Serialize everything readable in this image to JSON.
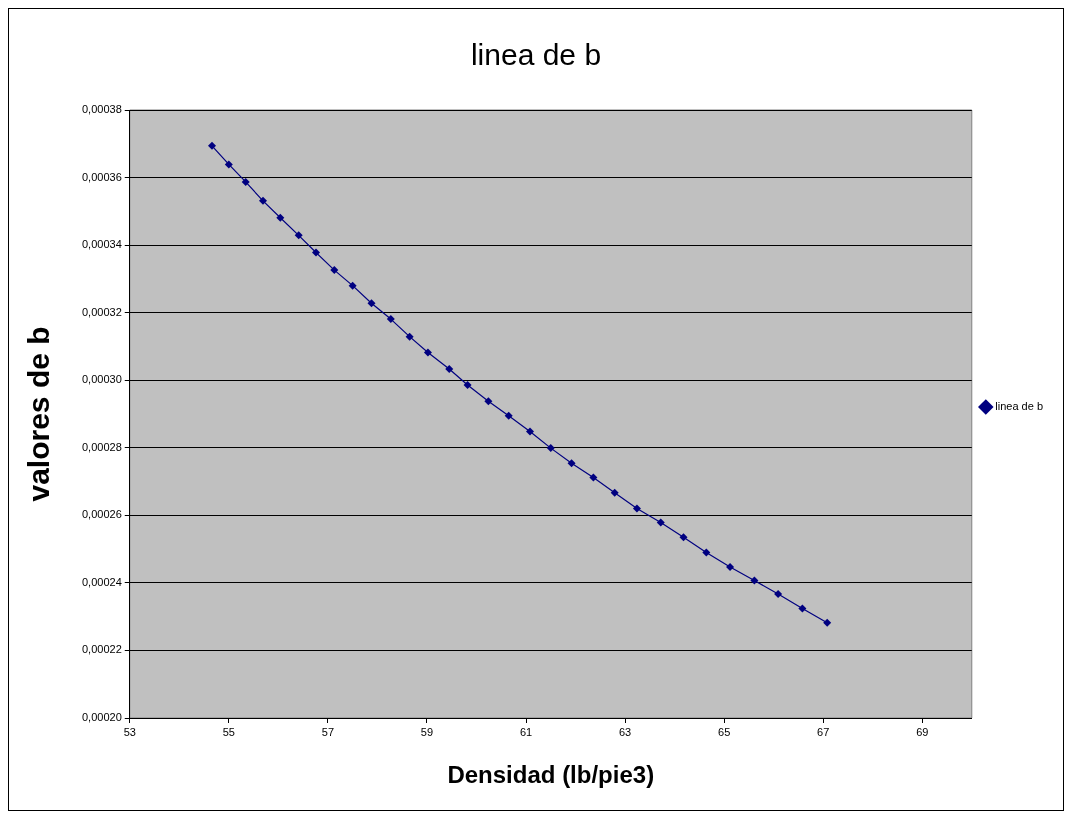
{
  "chart_data": {
    "type": "line",
    "title": "linea de b",
    "xlabel": "Densidad (lb/pie3)",
    "ylabel": "valores de b",
    "xlim": [
      53,
      70
    ],
    "xticks": [
      53,
      55,
      57,
      59,
      61,
      63,
      65,
      67,
      69
    ],
    "ylim": [
      0.0002,
      0.00038
    ],
    "yticks": [
      {
        "value": 0.0002,
        "label": "0,00020"
      },
      {
        "value": 0.00022,
        "label": "0,00022"
      },
      {
        "value": 0.00024,
        "label": "0,00024"
      },
      {
        "value": 0.00026,
        "label": "0,00026"
      },
      {
        "value": 0.00028,
        "label": "0,00028"
      },
      {
        "value": 0.0003,
        "label": "0,00030"
      },
      {
        "value": 0.00032,
        "label": "0,00032"
      },
      {
        "value": 0.00034,
        "label": "0,00034"
      },
      {
        "value": 0.00036,
        "label": "0,00036"
      },
      {
        "value": 0.00038,
        "label": "0,00038"
      }
    ],
    "grid": "y",
    "legend": "right",
    "marker": "diamond",
    "line_style": "solid",
    "series": [
      {
        "name": "linea de b",
        "color": "#000080",
        "x": [
          54.66,
          55.0,
          55.34,
          55.69,
          56.04,
          56.41,
          56.76,
          57.13,
          57.5,
          57.88,
          58.27,
          58.65,
          59.02,
          59.45,
          59.82,
          60.24,
          60.65,
          61.08,
          61.5,
          61.92,
          62.36,
          62.79,
          63.24,
          63.72,
          64.18,
          64.64,
          65.12,
          65.61,
          66.09,
          66.58,
          67.08
        ],
        "values": [
          0.0003694,
          0.0003639,
          0.0003587,
          0.0003531,
          0.0003481,
          0.0003429,
          0.0003378,
          0.0003326,
          0.000328,
          0.0003228,
          0.0003181,
          0.0003129,
          0.0003082,
          0.0003033,
          0.0002986,
          0.0002938,
          0.0002895,
          0.0002848,
          0.0002799,
          0.0002754,
          0.0002712,
          0.0002667,
          0.000262,
          0.0002579,
          0.0002535,
          0.000249,
          0.0002447,
          0.0002407,
          0.0002367,
          0.0002324,
          0.0002282
        ]
      }
    ]
  }
}
